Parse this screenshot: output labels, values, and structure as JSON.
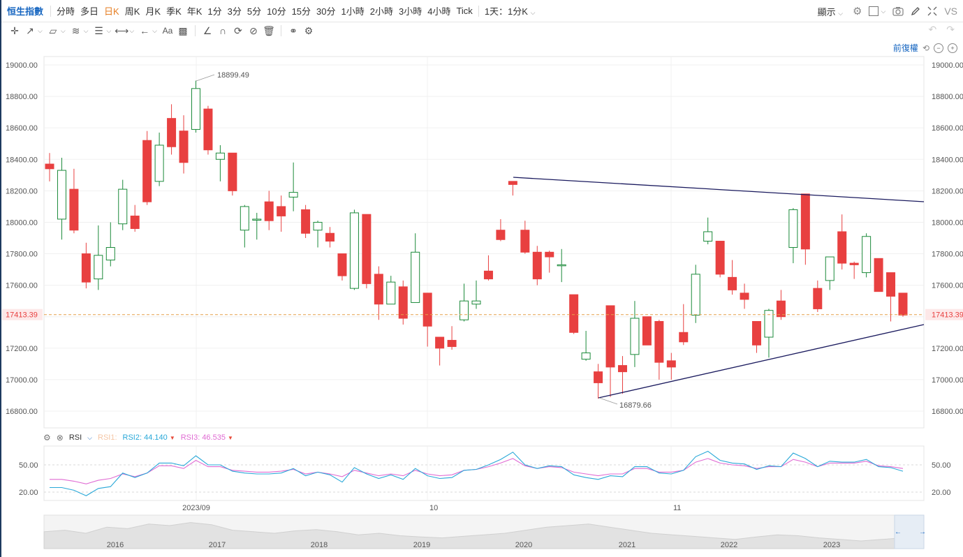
{
  "toolbar": {
    "symbol": "恒生指數",
    "periods": [
      "分時",
      "多日",
      "日K",
      "周K",
      "月K",
      "季K",
      "年K",
      "1分",
      "3分",
      "5分",
      "10分",
      "15分",
      "30分",
      "1小時",
      "2小時",
      "3小時",
      "4小時",
      "Tick",
      "1天：1分K"
    ],
    "active_period": "日K",
    "display_label": "顯示",
    "vs_label": "VS"
  },
  "adjust": {
    "label": "前復權"
  },
  "chart_data": {
    "type": "candlestick",
    "ylim": [
      16720,
      19060
    ],
    "y_ticks": [
      "19000.00",
      "18800.00",
      "18600.00",
      "18400.00",
      "18200.00",
      "18000.00",
      "17800.00",
      "17600.00",
      "17400.00",
      "17200.00",
      "17000.00",
      "16800.00"
    ],
    "x_ticks": [
      "2023/09",
      "10",
      "11"
    ],
    "last_price": "17413.39",
    "high_label": "18899.49",
    "low_label": "16879.66",
    "candles": [
      {
        "o": 18370,
        "h": 18440,
        "l": 18260,
        "c": 18340
      },
      {
        "o": 18020,
        "h": 18410,
        "l": 17890,
        "c": 18330
      },
      {
        "o": 18210,
        "h": 18340,
        "l": 17930,
        "c": 17950
      },
      {
        "o": 17800,
        "h": 17870,
        "l": 17580,
        "c": 17620
      },
      {
        "o": 17640,
        "h": 17980,
        "l": 17570,
        "c": 17790
      },
      {
        "o": 17760,
        "h": 18000,
        "l": 17720,
        "c": 17840
      },
      {
        "o": 17990,
        "h": 18270,
        "l": 17950,
        "c": 18210
      },
      {
        "o": 18040,
        "h": 18110,
        "l": 17940,
        "c": 17960
      },
      {
        "o": 18520,
        "h": 18580,
        "l": 18110,
        "c": 18130
      },
      {
        "o": 18260,
        "h": 18570,
        "l": 18230,
        "c": 18490
      },
      {
        "o": 18660,
        "h": 18750,
        "l": 18430,
        "c": 18480
      },
      {
        "o": 18580,
        "h": 18680,
        "l": 18310,
        "c": 18380
      },
      {
        "o": 18590,
        "h": 18900,
        "l": 18570,
        "c": 18850
      },
      {
        "o": 18720,
        "h": 18740,
        "l": 18430,
        "c": 18460
      },
      {
        "o": 18400,
        "h": 18490,
        "l": 18260,
        "c": 18440
      },
      {
        "o": 18440,
        "h": 18440,
        "l": 18170,
        "c": 18200
      },
      {
        "o": 17950,
        "h": 18110,
        "l": 17840,
        "c": 18100
      },
      {
        "o": 18020,
        "h": 18060,
        "l": 17890,
        "c": 18020
      },
      {
        "o": 18130,
        "h": 18200,
        "l": 17950,
        "c": 18010
      },
      {
        "o": 18100,
        "h": 18170,
        "l": 17940,
        "c": 18040
      },
      {
        "o": 18160,
        "h": 18380,
        "l": 18070,
        "c": 18190
      },
      {
        "o": 18080,
        "h": 18110,
        "l": 17900,
        "c": 17930
      },
      {
        "o": 17950,
        "h": 18010,
        "l": 17840,
        "c": 18000
      },
      {
        "o": 17930,
        "h": 17970,
        "l": 17840,
        "c": 17880
      },
      {
        "o": 17800,
        "h": 17800,
        "l": 17630,
        "c": 17660
      },
      {
        "o": 17580,
        "h": 18080,
        "l": 17570,
        "c": 18060
      },
      {
        "o": 18050,
        "h": 18050,
        "l": 17580,
        "c": 17610
      },
      {
        "o": 17670,
        "h": 17720,
        "l": 17380,
        "c": 17480
      },
      {
        "o": 17480,
        "h": 17660,
        "l": 17480,
        "c": 17620
      },
      {
        "o": 17590,
        "h": 17630,
        "l": 17350,
        "c": 17390
      },
      {
        "o": 17490,
        "h": 17930,
        "l": 17490,
        "c": 17810
      },
      {
        "o": 17550,
        "h": 17550,
        "l": 17210,
        "c": 17340
      },
      {
        "o": 17270,
        "h": 17270,
        "l": 17090,
        "c": 17200
      },
      {
        "o": 17250,
        "h": 17340,
        "l": 17190,
        "c": 17210
      },
      {
        "o": 17380,
        "h": 17610,
        "l": 17370,
        "c": 17500
      },
      {
        "o": 17480,
        "h": 17630,
        "l": 17450,
        "c": 17500
      },
      {
        "o": 17690,
        "h": 17790,
        "l": 17630,
        "c": 17640
      },
      {
        "o": 17950,
        "h": 18020,
        "l": 17880,
        "c": 17890
      },
      {
        "o": 18260,
        "h": 18260,
        "l": 18170,
        "c": 18240
      },
      {
        "o": 17950,
        "h": 18010,
        "l": 17800,
        "c": 17810
      },
      {
        "o": 17810,
        "h": 17850,
        "l": 17600,
        "c": 17640
      },
      {
        "o": 17810,
        "h": 17820,
        "l": 17680,
        "c": 17780
      },
      {
        "o": 17730,
        "h": 17830,
        "l": 17620,
        "c": 17730
      },
      {
        "o": 17540,
        "h": 17540,
        "l": 17290,
        "c": 17300
      },
      {
        "o": 17130,
        "h": 17310,
        "l": 17120,
        "c": 17170
      },
      {
        "o": 17050,
        "h": 17100,
        "l": 16880,
        "c": 16980
      },
      {
        "o": 17470,
        "h": 17470,
        "l": 16890,
        "c": 17080
      },
      {
        "o": 17090,
        "h": 17150,
        "l": 16910,
        "c": 17050
      },
      {
        "o": 17160,
        "h": 17500,
        "l": 17080,
        "c": 17390
      },
      {
        "o": 17400,
        "h": 17400,
        "l": 17220,
        "c": 17220
      },
      {
        "o": 17370,
        "h": 17380,
        "l": 17000,
        "c": 17110
      },
      {
        "o": 17120,
        "h": 17170,
        "l": 17000,
        "c": 17080
      },
      {
        "o": 17300,
        "h": 17480,
        "l": 17220,
        "c": 17240
      },
      {
        "o": 17410,
        "h": 17730,
        "l": 17360,
        "c": 17670
      },
      {
        "o": 17880,
        "h": 18030,
        "l": 17860,
        "c": 17940
      },
      {
        "o": 17880,
        "h": 17880,
        "l": 17650,
        "c": 17670
      },
      {
        "o": 17650,
        "h": 17760,
        "l": 17540,
        "c": 17570
      },
      {
        "o": 17550,
        "h": 17610,
        "l": 17450,
        "c": 17510
      },
      {
        "o": 17370,
        "h": 17370,
        "l": 17170,
        "c": 17220
      },
      {
        "o": 17270,
        "h": 17450,
        "l": 17140,
        "c": 17440
      },
      {
        "o": 17500,
        "h": 17570,
        "l": 17380,
        "c": 17400
      },
      {
        "o": 17840,
        "h": 18090,
        "l": 17740,
        "c": 18080
      },
      {
        "o": 18180,
        "h": 18180,
        "l": 17730,
        "c": 17830
      },
      {
        "o": 17580,
        "h": 17630,
        "l": 17430,
        "c": 17450
      },
      {
        "o": 17630,
        "h": 17780,
        "l": 17570,
        "c": 17780
      },
      {
        "o": 17940,
        "h": 18050,
        "l": 17700,
        "c": 17740
      },
      {
        "o": 17740,
        "h": 17750,
        "l": 17640,
        "c": 17730
      },
      {
        "o": 17680,
        "h": 17930,
        "l": 17650,
        "c": 17910
      },
      {
        "o": 17770,
        "h": 17770,
        "l": 17560,
        "c": 17560
      },
      {
        "o": 17680,
        "h": 17680,
        "l": 17370,
        "c": 17530
      },
      {
        "o": 17550,
        "h": 17550,
        "l": 17400,
        "c": 17410
      }
    ],
    "rsi": {
      "label": "RSI",
      "rsi1_label": "RSI1:",
      "rsi2_label": "RSI2:",
      "rsi2_value": "44.140",
      "rsi3_label": "RSI3:",
      "rsi3_value": "46.535",
      "y_ticks": [
        "50.00",
        "20.00"
      ],
      "ylim": [
        5,
        85
      ],
      "rsi2": [
        25,
        25,
        22,
        16,
        24,
        26,
        41,
        36,
        41,
        52,
        52,
        49,
        60,
        50,
        50,
        43,
        41,
        40,
        40,
        41,
        46,
        38,
        42,
        39,
        31,
        47,
        40,
        35,
        39,
        34,
        46,
        38,
        35,
        36,
        44,
        45,
        50,
        56,
        64,
        50,
        46,
        49,
        48,
        39,
        36,
        34,
        38,
        37,
        48,
        48,
        41,
        40,
        44,
        59,
        65,
        55,
        52,
        51,
        45,
        49,
        48,
        63,
        57,
        48,
        54,
        53,
        53,
        56,
        48,
        47,
        43
      ],
      "rsi3": [
        34,
        34,
        32,
        29,
        33,
        35,
        40,
        37,
        41,
        49,
        49,
        46,
        55,
        48,
        48,
        44,
        43,
        42,
        42,
        43,
        45,
        40,
        42,
        40,
        37,
        44,
        41,
        38,
        40,
        38,
        44,
        40,
        38,
        39,
        44,
        45,
        48,
        52,
        57,
        49,
        46,
        48,
        47,
        42,
        40,
        38,
        40,
        40,
        46,
        46,
        42,
        42,
        44,
        53,
        57,
        52,
        50,
        49,
        46,
        48,
        48,
        56,
        53,
        48,
        52,
        52,
        52,
        54,
        49,
        48,
        46
      ],
      "colors": {
        "rsi2": "#29a8d8",
        "rsi3": "#e06bd3"
      }
    },
    "overview": {
      "labels": [
        "2016",
        "2017",
        "2018",
        "2019",
        "2020",
        "2021",
        "2022",
        "2023"
      ]
    },
    "colors": {
      "up": "#1b8a3a",
      "down": "#e84040",
      "trend": "#1a1a5e",
      "price_line": "#e6a04a",
      "price_tag": "#fde8e8",
      "price_text": "#e84040"
    }
  }
}
